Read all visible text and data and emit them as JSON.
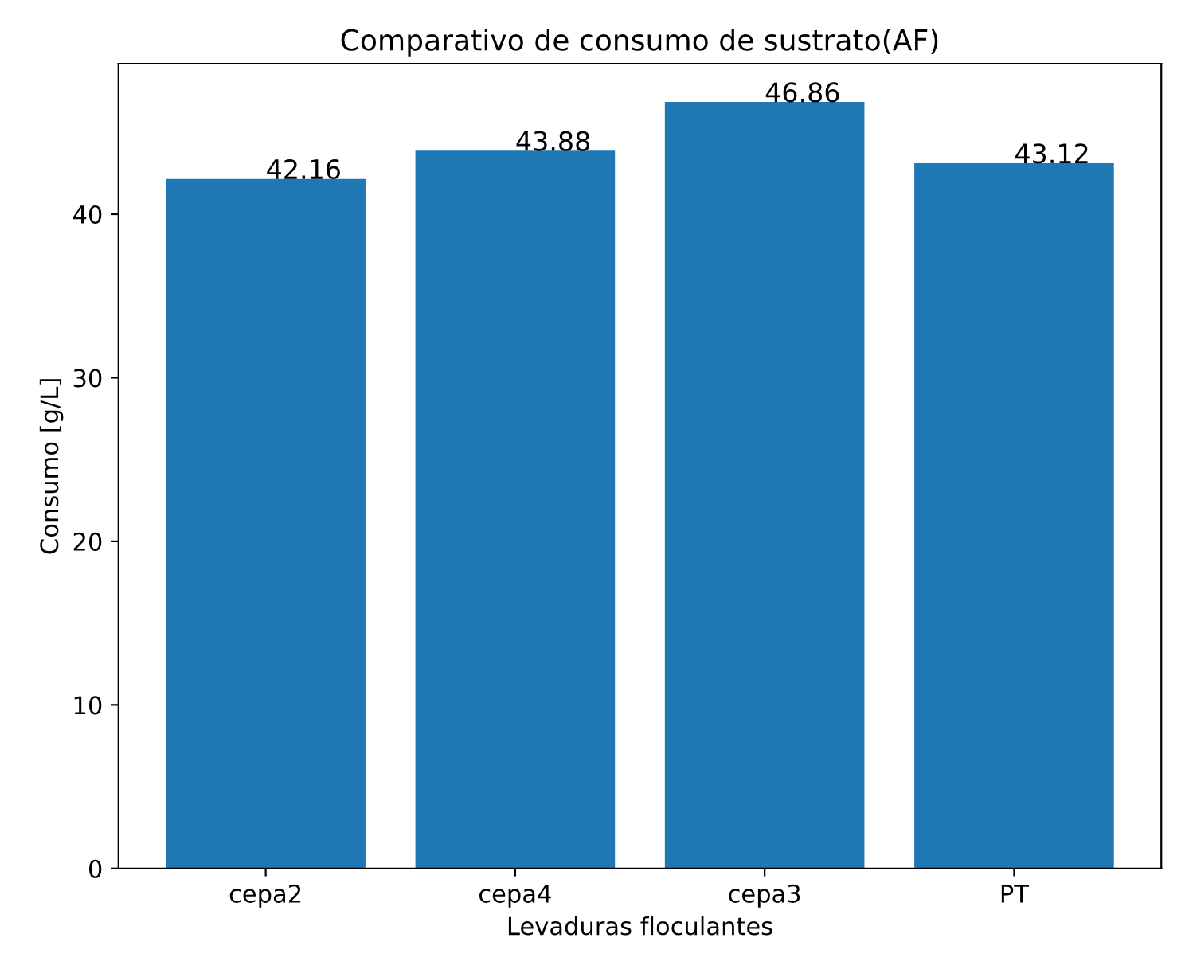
{
  "chart_data": {
    "type": "bar",
    "title": "Comparativo de consumo de sustrato(AF)",
    "xlabel": "Levaduras floculantes",
    "ylabel": "Consumo [g/L]",
    "categories": [
      "cepa2",
      "cepa4",
      "cepa3",
      "PT"
    ],
    "values": [
      42.16,
      43.88,
      46.86,
      43.12
    ],
    "color": "#1f77b4",
    "ylim": [
      0,
      49.2
    ],
    "yticks": [
      0,
      10,
      20,
      30,
      40
    ],
    "data_labels": true,
    "grid": false
  }
}
